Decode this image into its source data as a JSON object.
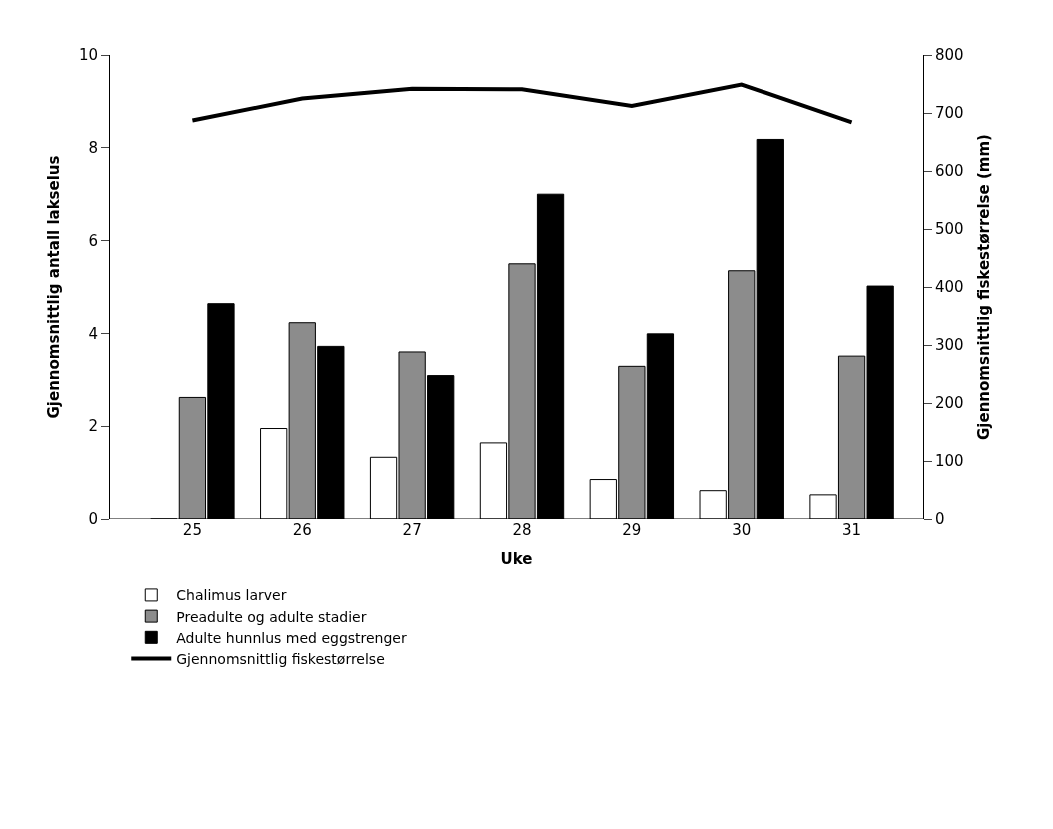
{
  "chart_data": {
    "type": "bar",
    "xlabel": "Uke",
    "ylabel": "Gjennomsnittlig antall lakselus",
    "y2label": "Gjennomsnittlig fiskestørrelse (mm)",
    "categories": [
      "25",
      "26",
      "27",
      "28",
      "29",
      "30",
      "31"
    ],
    "series": [
      {
        "name": "Chalimus larver",
        "color": "#ffffff",
        "values": [
          0,
          1.95,
          1.33,
          1.64,
          0.85,
          0.61,
          0.52
        ]
      },
      {
        "name": "Preadulte og adulte stadier",
        "color": "#8c8c8c",
        "values": [
          2.62,
          4.23,
          3.6,
          5.5,
          3.29,
          5.35,
          3.51
        ]
      },
      {
        "name": "Adulte hunnlus med eggstrenger",
        "color": "#000000",
        "values": [
          4.64,
          3.72,
          3.09,
          7.0,
          3.99,
          8.18,
          5.02
        ]
      },
      {
        "name": "Gjennomsnittlig fiskestørrelse",
        "type": "line",
        "axis": "y2",
        "color": "#000000",
        "marker": "none",
        "line_style": "solid",
        "values": [
          687,
          725,
          742,
          741,
          712,
          749,
          684
        ]
      }
    ],
    "ylim": [
      0,
      10
    ],
    "yticks": [
      0,
      2,
      4,
      6,
      8,
      10
    ],
    "y2lim": [
      0,
      800
    ],
    "y2ticks": [
      0,
      100,
      200,
      300,
      400,
      500,
      600,
      700,
      800
    ],
    "legend": "bottom left"
  }
}
